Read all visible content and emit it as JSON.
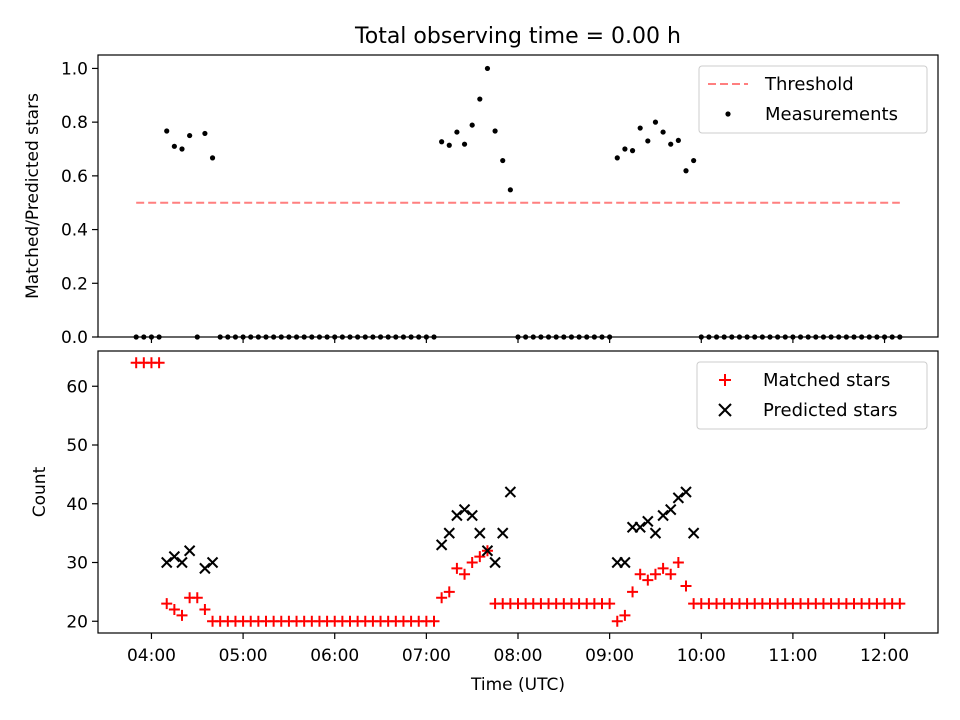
{
  "chart_data": [
    {
      "type": "scatter",
      "title": "Total observing time = 0.00 h",
      "xlabel": "",
      "ylabel": "Matched/Predicted stars",
      "xlim": [
        "03:25",
        "12:35"
      ],
      "ylim": [
        0,
        1.05
      ],
      "yticks": [
        0.0,
        0.2,
        0.4,
        0.6,
        0.8,
        1.0
      ],
      "ytick_labels": [
        "0.0",
        "0.2",
        "0.4",
        "0.6",
        "0.8",
        "1.0"
      ],
      "grid": false,
      "legend_position": "top-right",
      "legend": [
        "Threshold",
        "Measurements"
      ],
      "threshold": {
        "name": "Threshold",
        "y": 0.5,
        "x": [
          "03:50",
          "12:10"
        ],
        "color": "#ff7f7f",
        "style": "dashed"
      },
      "series": [
        {
          "name": "Measurements",
          "color": "#000000",
          "points": [
            [
              "03:50",
              0
            ],
            [
              "03:55",
              0
            ],
            [
              "04:00",
              0
            ],
            [
              "04:05",
              0
            ],
            [
              "04:10",
              0.767
            ],
            [
              "04:15",
              0.71
            ],
            [
              "04:20",
              0.7
            ],
            [
              "04:25",
              0.75
            ],
            [
              "04:30",
              0
            ],
            [
              "04:35",
              0.758
            ],
            [
              "04:40",
              0.667
            ],
            [
              "04:45",
              0
            ],
            [
              "04:50",
              0
            ],
            [
              "04:55",
              0
            ],
            [
              "05:00",
              0
            ],
            [
              "05:05",
              0
            ],
            [
              "05:10",
              0
            ],
            [
              "05:15",
              0
            ],
            [
              "05:20",
              0
            ],
            [
              "05:25",
              0
            ],
            [
              "05:30",
              0
            ],
            [
              "05:35",
              0
            ],
            [
              "05:40",
              0
            ],
            [
              "05:45",
              0
            ],
            [
              "05:50",
              0
            ],
            [
              "05:55",
              0
            ],
            [
              "06:00",
              0
            ],
            [
              "06:05",
              0
            ],
            [
              "06:10",
              0
            ],
            [
              "06:15",
              0
            ],
            [
              "06:20",
              0
            ],
            [
              "06:25",
              0
            ],
            [
              "06:30",
              0
            ],
            [
              "06:35",
              0
            ],
            [
              "06:40",
              0
            ],
            [
              "06:45",
              0
            ],
            [
              "06:50",
              0
            ],
            [
              "06:55",
              0
            ],
            [
              "07:00",
              0
            ],
            [
              "07:05",
              0
            ],
            [
              "07:10",
              0.727
            ],
            [
              "07:15",
              0.714
            ],
            [
              "07:20",
              0.763
            ],
            [
              "07:25",
              0.718
            ],
            [
              "07:30",
              0.789
            ],
            [
              "07:35",
              0.886
            ],
            [
              "07:40",
              1.0
            ],
            [
              "07:45",
              0.767
            ],
            [
              "07:50",
              0.657
            ],
            [
              "07:55",
              0.548
            ],
            [
              "08:00",
              0
            ],
            [
              "08:05",
              0
            ],
            [
              "08:10",
              0
            ],
            [
              "08:15",
              0
            ],
            [
              "08:20",
              0
            ],
            [
              "08:25",
              0
            ],
            [
              "08:30",
              0
            ],
            [
              "08:35",
              0
            ],
            [
              "08:40",
              0
            ],
            [
              "08:45",
              0
            ],
            [
              "08:50",
              0
            ],
            [
              "08:55",
              0
            ],
            [
              "09:00",
              0
            ],
            [
              "09:05",
              0.667
            ],
            [
              "09:10",
              0.7
            ],
            [
              "09:15",
              0.694
            ],
            [
              "09:20",
              0.778
            ],
            [
              "09:25",
              0.73
            ],
            [
              "09:30",
              0.8
            ],
            [
              "09:35",
              0.763
            ],
            [
              "09:40",
              0.718
            ],
            [
              "09:45",
              0.732
            ],
            [
              "09:50",
              0.619
            ],
            [
              "09:55",
              0.657
            ],
            [
              "10:00",
              0
            ],
            [
              "10:05",
              0
            ],
            [
              "10:10",
              0
            ],
            [
              "10:15",
              0
            ],
            [
              "10:20",
              0
            ],
            [
              "10:25",
              0
            ],
            [
              "10:30",
              0
            ],
            [
              "10:35",
              0
            ],
            [
              "10:40",
              0
            ],
            [
              "10:45",
              0
            ],
            [
              "10:50",
              0
            ],
            [
              "10:55",
              0
            ],
            [
              "11:00",
              0
            ],
            [
              "11:05",
              0
            ],
            [
              "11:10",
              0
            ],
            [
              "11:15",
              0
            ],
            [
              "11:20",
              0
            ],
            [
              "11:25",
              0
            ],
            [
              "11:30",
              0
            ],
            [
              "11:35",
              0
            ],
            [
              "11:40",
              0
            ],
            [
              "11:45",
              0
            ],
            [
              "11:50",
              0
            ],
            [
              "11:55",
              0
            ],
            [
              "12:00",
              0
            ],
            [
              "12:05",
              0
            ],
            [
              "12:10",
              0
            ]
          ]
        }
      ]
    },
    {
      "type": "scatter",
      "title": "",
      "xlabel": "Time (UTC)",
      "ylabel": "Count",
      "xlim": [
        "03:25",
        "12:35"
      ],
      "ylim": [
        18,
        66
      ],
      "yticks": [
        20,
        30,
        40,
        50,
        60
      ],
      "ytick_labels": [
        "20",
        "30",
        "40",
        "50",
        "60"
      ],
      "xticks": [
        "04:00",
        "05:00",
        "06:00",
        "07:00",
        "08:00",
        "09:00",
        "10:00",
        "11:00",
        "12:00"
      ],
      "xtick_labels": [
        "04:00",
        "05:00",
        "06:00",
        "07:00",
        "08:00",
        "09:00",
        "10:00",
        "11:00",
        "12:00"
      ],
      "grid": false,
      "legend_position": "top-right",
      "legend": [
        "Matched stars",
        "Predicted stars"
      ],
      "series": [
        {
          "name": "Matched stars",
          "marker": "plus",
          "color": "#ff0000",
          "points": [
            [
              "03:50",
              64
            ],
            [
              "03:55",
              64
            ],
            [
              "04:00",
              64
            ],
            [
              "04:05",
              64
            ],
            [
              "04:10",
              23
            ],
            [
              "04:15",
              22
            ],
            [
              "04:20",
              21
            ],
            [
              "04:25",
              24
            ],
            [
              "04:30",
              24
            ],
            [
              "04:35",
              22
            ],
            [
              "04:40",
              20
            ],
            [
              "04:45",
              20
            ],
            [
              "04:50",
              20
            ],
            [
              "04:55",
              20
            ],
            [
              "05:00",
              20
            ],
            [
              "05:05",
              20
            ],
            [
              "05:10",
              20
            ],
            [
              "05:15",
              20
            ],
            [
              "05:20",
              20
            ],
            [
              "05:25",
              20
            ],
            [
              "05:30",
              20
            ],
            [
              "05:35",
              20
            ],
            [
              "05:40",
              20
            ],
            [
              "05:45",
              20
            ],
            [
              "05:50",
              20
            ],
            [
              "05:55",
              20
            ],
            [
              "06:00",
              20
            ],
            [
              "06:05",
              20
            ],
            [
              "06:10",
              20
            ],
            [
              "06:15",
              20
            ],
            [
              "06:20",
              20
            ],
            [
              "06:25",
              20
            ],
            [
              "06:30",
              20
            ],
            [
              "06:35",
              20
            ],
            [
              "06:40",
              20
            ],
            [
              "06:45",
              20
            ],
            [
              "06:50",
              20
            ],
            [
              "06:55",
              20
            ],
            [
              "07:00",
              20
            ],
            [
              "07:05",
              20
            ],
            [
              "07:10",
              24
            ],
            [
              "07:15",
              25
            ],
            [
              "07:20",
              29
            ],
            [
              "07:25",
              28
            ],
            [
              "07:30",
              30
            ],
            [
              "07:35",
              31
            ],
            [
              "07:40",
              32
            ],
            [
              "07:45",
              23
            ],
            [
              "07:50",
              23
            ],
            [
              "07:55",
              23
            ],
            [
              "08:00",
              23
            ],
            [
              "08:05",
              23
            ],
            [
              "08:10",
              23
            ],
            [
              "08:15",
              23
            ],
            [
              "08:20",
              23
            ],
            [
              "08:25",
              23
            ],
            [
              "08:30",
              23
            ],
            [
              "08:35",
              23
            ],
            [
              "08:40",
              23
            ],
            [
              "08:45",
              23
            ],
            [
              "08:50",
              23
            ],
            [
              "08:55",
              23
            ],
            [
              "09:00",
              23
            ],
            [
              "09:05",
              20
            ],
            [
              "09:10",
              21
            ],
            [
              "09:15",
              25
            ],
            [
              "09:20",
              28
            ],
            [
              "09:25",
              27
            ],
            [
              "09:30",
              28
            ],
            [
              "09:35",
              29
            ],
            [
              "09:40",
              28
            ],
            [
              "09:45",
              30
            ],
            [
              "09:50",
              26
            ],
            [
              "09:55",
              23
            ],
            [
              "10:00",
              23
            ],
            [
              "10:05",
              23
            ],
            [
              "10:10",
              23
            ],
            [
              "10:15",
              23
            ],
            [
              "10:20",
              23
            ],
            [
              "10:25",
              23
            ],
            [
              "10:30",
              23
            ],
            [
              "10:35",
              23
            ],
            [
              "10:40",
              23
            ],
            [
              "10:45",
              23
            ],
            [
              "10:50",
              23
            ],
            [
              "10:55",
              23
            ],
            [
              "11:00",
              23
            ],
            [
              "11:05",
              23
            ],
            [
              "11:10",
              23
            ],
            [
              "11:15",
              23
            ],
            [
              "11:20",
              23
            ],
            [
              "11:25",
              23
            ],
            [
              "11:30",
              23
            ],
            [
              "11:35",
              23
            ],
            [
              "11:40",
              23
            ],
            [
              "11:45",
              23
            ],
            [
              "11:50",
              23
            ],
            [
              "11:55",
              23
            ],
            [
              "12:00",
              23
            ],
            [
              "12:05",
              23
            ],
            [
              "12:10",
              23
            ]
          ]
        },
        {
          "name": "Predicted stars",
          "marker": "x",
          "color": "#000000",
          "points": [
            [
              "04:10",
              30
            ],
            [
              "04:15",
              31
            ],
            [
              "04:20",
              30
            ],
            [
              "04:25",
              32
            ],
            [
              "04:35",
              29
            ],
            [
              "04:40",
              30
            ],
            [
              "07:10",
              33
            ],
            [
              "07:15",
              35
            ],
            [
              "07:20",
              38
            ],
            [
              "07:25",
              39
            ],
            [
              "07:30",
              38
            ],
            [
              "07:35",
              35
            ],
            [
              "07:40",
              32
            ],
            [
              "07:45",
              30
            ],
            [
              "07:50",
              35
            ],
            [
              "07:55",
              42
            ],
            [
              "09:05",
              30
            ],
            [
              "09:10",
              30
            ],
            [
              "09:15",
              36
            ],
            [
              "09:20",
              36
            ],
            [
              "09:25",
              37
            ],
            [
              "09:30",
              35
            ],
            [
              "09:35",
              38
            ],
            [
              "09:40",
              39
            ],
            [
              "09:45",
              41
            ],
            [
              "09:50",
              42
            ],
            [
              "09:55",
              35
            ]
          ]
        }
      ]
    }
  ]
}
